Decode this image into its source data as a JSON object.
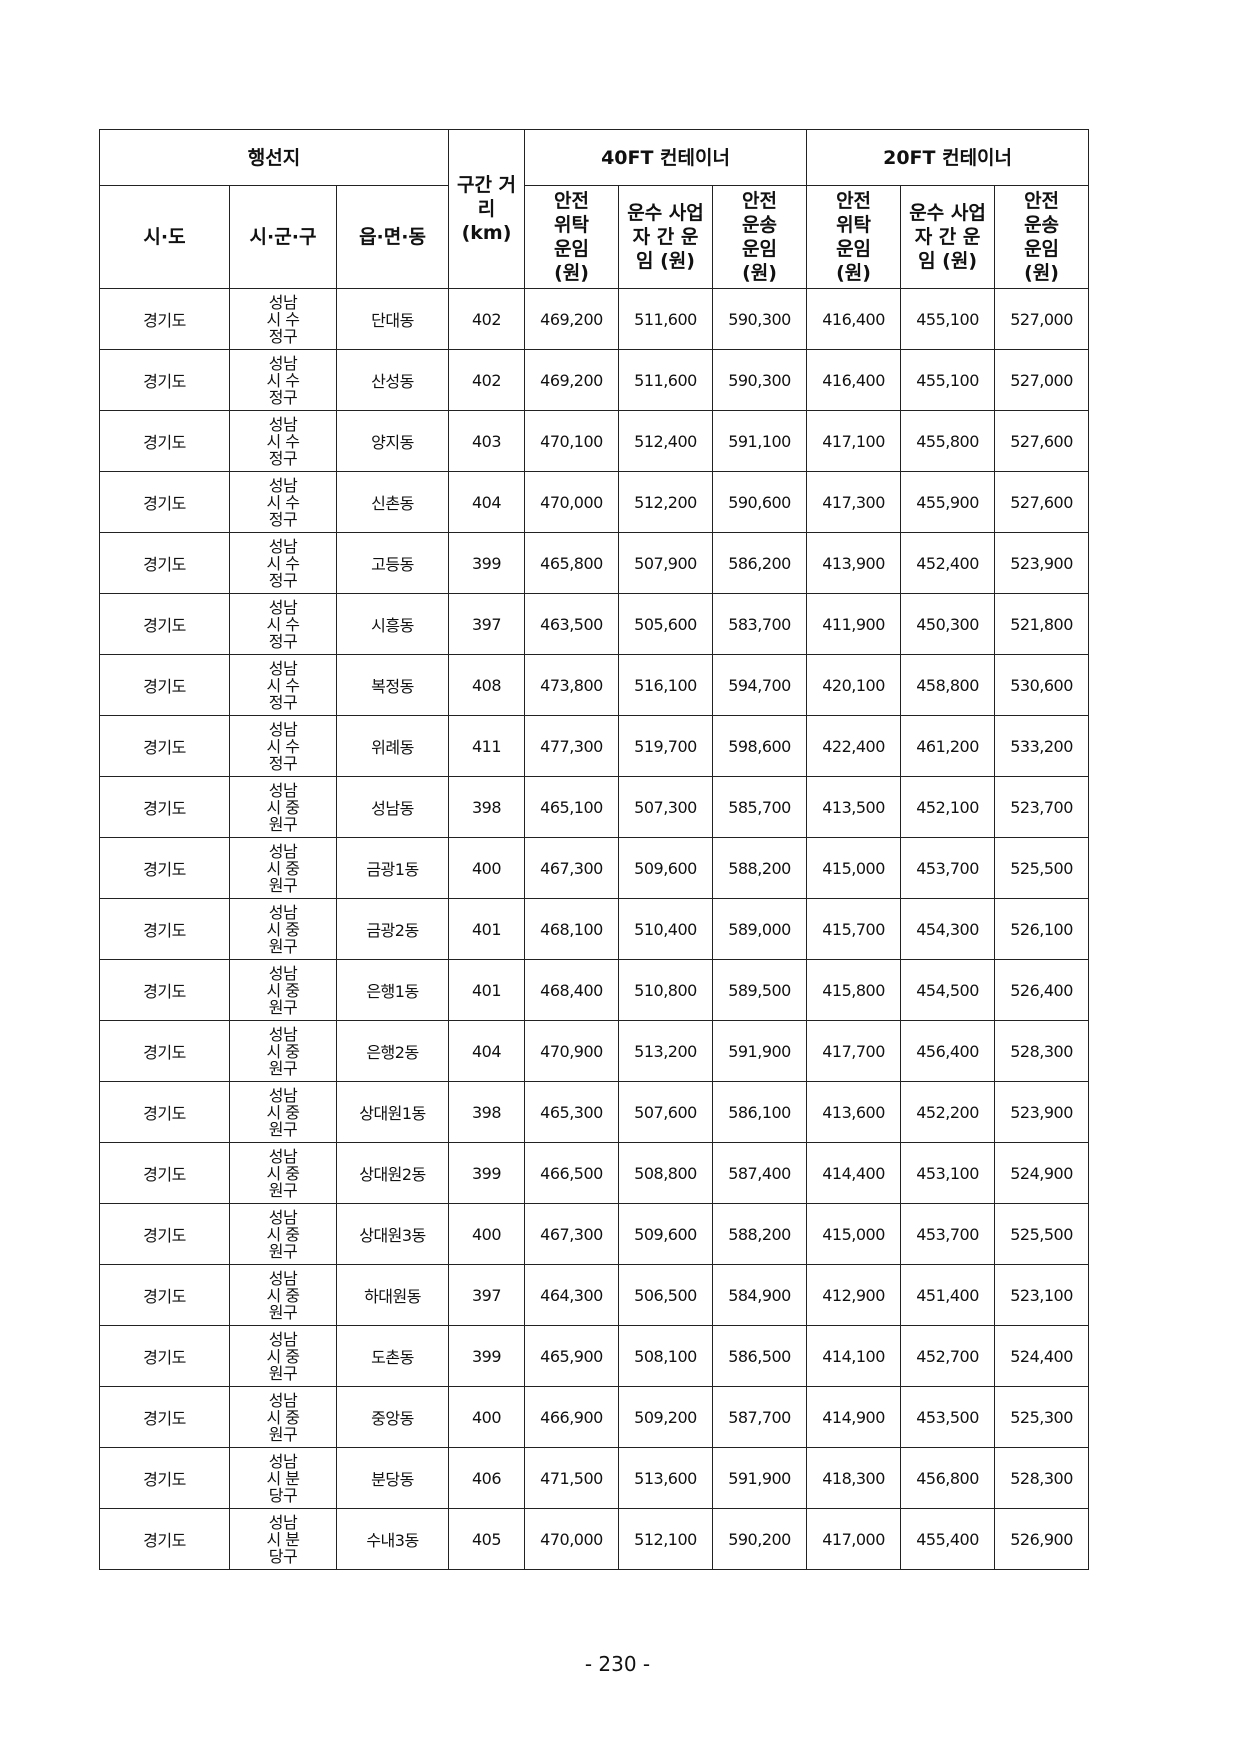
{
  "header": {
    "destination": "행선지",
    "distance": "구간 거리 (km)",
    "group_40ft": "40FT 컨테이너",
    "group_20ft": "20FT 컨테이너",
    "sido": "시·도",
    "sigungu": "시·군·구",
    "eupmyeondong": "읍·면·동",
    "col_safe_consign": "안전 위탁 운임 (원)",
    "col_carrier": "운수 사업자 간 운임 (원)",
    "col_safe_transport": "안전 운송 운임 (원)"
  },
  "rows": [
    [
      "경기도",
      "성남시 수정구",
      "단대동",
      "402",
      "469,200",
      "511,600",
      "590,300",
      "416,400",
      "455,100",
      "527,000"
    ],
    [
      "경기도",
      "성남시 수정구",
      "산성동",
      "402",
      "469,200",
      "511,600",
      "590,300",
      "416,400",
      "455,100",
      "527,000"
    ],
    [
      "경기도",
      "성남시 수정구",
      "양지동",
      "403",
      "470,100",
      "512,400",
      "591,100",
      "417,100",
      "455,800",
      "527,600"
    ],
    [
      "경기도",
      "성남시 수정구",
      "신촌동",
      "404",
      "470,000",
      "512,200",
      "590,600",
      "417,300",
      "455,900",
      "527,600"
    ],
    [
      "경기도",
      "성남시 수정구",
      "고등동",
      "399",
      "465,800",
      "507,900",
      "586,200",
      "413,900",
      "452,400",
      "523,900"
    ],
    [
      "경기도",
      "성남시 수정구",
      "시흥동",
      "397",
      "463,500",
      "505,600",
      "583,700",
      "411,900",
      "450,300",
      "521,800"
    ],
    [
      "경기도",
      "성남시 수정구",
      "복정동",
      "408",
      "473,800",
      "516,100",
      "594,700",
      "420,100",
      "458,800",
      "530,600"
    ],
    [
      "경기도",
      "성남시 수정구",
      "위례동",
      "411",
      "477,300",
      "519,700",
      "598,600",
      "422,400",
      "461,200",
      "533,200"
    ],
    [
      "경기도",
      "성남시 중원구",
      "성남동",
      "398",
      "465,100",
      "507,300",
      "585,700",
      "413,500",
      "452,100",
      "523,700"
    ],
    [
      "경기도",
      "성남시 중원구",
      "금광1동",
      "400",
      "467,300",
      "509,600",
      "588,200",
      "415,000",
      "453,700",
      "525,500"
    ],
    [
      "경기도",
      "성남시 중원구",
      "금광2동",
      "401",
      "468,100",
      "510,400",
      "589,000",
      "415,700",
      "454,300",
      "526,100"
    ],
    [
      "경기도",
      "성남시 중원구",
      "은행1동",
      "401",
      "468,400",
      "510,800",
      "589,500",
      "415,800",
      "454,500",
      "526,400"
    ],
    [
      "경기도",
      "성남시 중원구",
      "은행2동",
      "404",
      "470,900",
      "513,200",
      "591,900",
      "417,700",
      "456,400",
      "528,300"
    ],
    [
      "경기도",
      "성남시 중원구",
      "상대원1동",
      "398",
      "465,300",
      "507,600",
      "586,100",
      "413,600",
      "452,200",
      "523,900"
    ],
    [
      "경기도",
      "성남시 중원구",
      "상대원2동",
      "399",
      "466,500",
      "508,800",
      "587,400",
      "414,400",
      "453,100",
      "524,900"
    ],
    [
      "경기도",
      "성남시 중원구",
      "상대원3동",
      "400",
      "467,300",
      "509,600",
      "588,200",
      "415,000",
      "453,700",
      "525,500"
    ],
    [
      "경기도",
      "성남시 중원구",
      "하대원동",
      "397",
      "464,300",
      "506,500",
      "584,900",
      "412,900",
      "451,400",
      "523,100"
    ],
    [
      "경기도",
      "성남시 중원구",
      "도촌동",
      "399",
      "465,900",
      "508,100",
      "586,500",
      "414,100",
      "452,700",
      "524,400"
    ],
    [
      "경기도",
      "성남시 중원구",
      "중앙동",
      "400",
      "466,900",
      "509,200",
      "587,700",
      "414,900",
      "453,500",
      "525,300"
    ],
    [
      "경기도",
      "성남시 분당구",
      "분당동",
      "406",
      "471,500",
      "513,600",
      "591,900",
      "418,300",
      "456,800",
      "528,300"
    ],
    [
      "경기도",
      "성남시 분당구",
      "수내3동",
      "405",
      "470,000",
      "512,100",
      "590,200",
      "417,000",
      "455,400",
      "526,900"
    ]
  ],
  "page_number": "- 230 -"
}
